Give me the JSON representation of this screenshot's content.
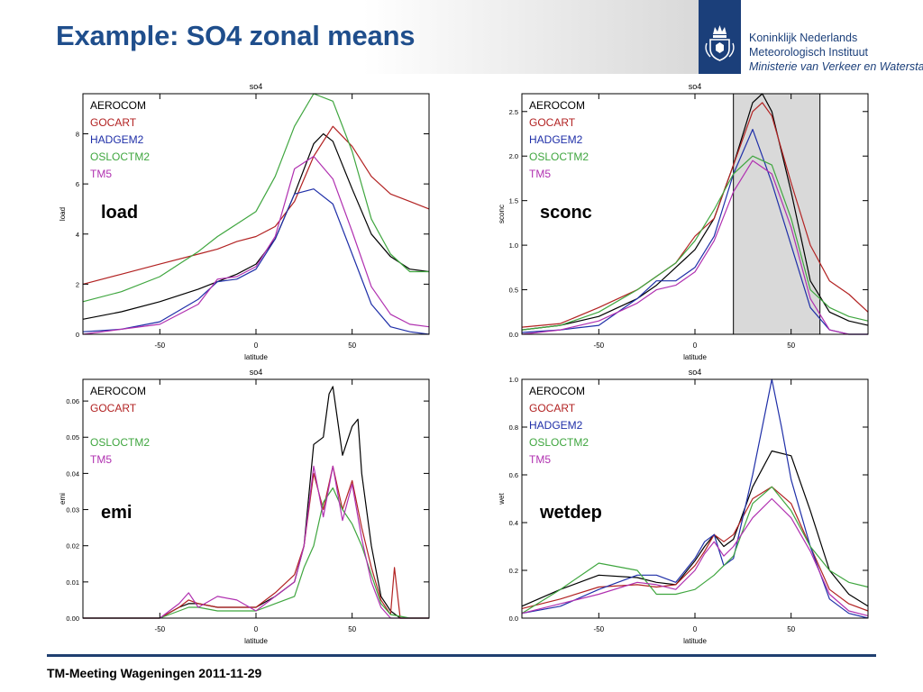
{
  "header": {
    "title": "Example: SO4 zonal means",
    "logo": {
      "line1": "Koninklijk Nederlands",
      "line2": "Meteorologisch Instituut",
      "line3": "Ministerie van Verkeer en Waterstaat"
    }
  },
  "footer": {
    "text": "TM-Meeting Wageningen 2011-11-29"
  },
  "colors": {
    "title": "#1f4e8c",
    "AEROCOM": "#000000",
    "GOCART": "#b22222",
    "HADGEM2": "#1f2fa8",
    "OSLOCTM2": "#3fa63f",
    "TM5": "#b030b0",
    "shade": "#d9d9d9"
  },
  "chart_data": [
    {
      "type": "line",
      "title": "so4",
      "xlabel": "latitude",
      "ylabel": "load",
      "panel_label": "load",
      "xlim": [
        -90,
        90
      ],
      "ylim": [
        0,
        9.6
      ],
      "xticks": [
        -50,
        0,
        50
      ],
      "yticks": [
        0,
        2,
        4,
        6,
        8
      ],
      "legend": [
        "AEROCOM",
        "GOCART",
        "HADGEM2",
        "OSLOCTM2",
        "TM5"
      ],
      "legend_position": "top-left",
      "series": [
        {
          "name": "AEROCOM",
          "x": [
            -90,
            -70,
            -50,
            -30,
            -20,
            -10,
            0,
            10,
            20,
            30,
            35,
            40,
            50,
            60,
            70,
            80,
            90
          ],
          "y": [
            0.6,
            0.9,
            1.3,
            1.8,
            2.1,
            2.4,
            2.8,
            3.8,
            5.6,
            7.6,
            8.0,
            7.7,
            5.8,
            4.0,
            3.1,
            2.6,
            2.5
          ]
        },
        {
          "name": "GOCART",
          "x": [
            -90,
            -70,
            -50,
            -30,
            -20,
            -10,
            0,
            10,
            20,
            30,
            40,
            50,
            60,
            70,
            80,
            90
          ],
          "y": [
            2.0,
            2.4,
            2.8,
            3.2,
            3.4,
            3.7,
            3.9,
            4.3,
            5.3,
            7.1,
            8.3,
            7.5,
            6.3,
            5.6,
            5.3,
            5.0
          ]
        },
        {
          "name": "HADGEM2",
          "x": [
            -90,
            -70,
            -50,
            -30,
            -20,
            -10,
            0,
            10,
            20,
            30,
            40,
            50,
            60,
            70,
            80,
            90
          ],
          "y": [
            0.1,
            0.2,
            0.5,
            1.4,
            2.1,
            2.2,
            2.6,
            3.8,
            5.6,
            5.8,
            5.2,
            3.2,
            1.2,
            0.3,
            0.1,
            0.0
          ]
        },
        {
          "name": "OSLOCTM2",
          "x": [
            -90,
            -70,
            -50,
            -30,
            -20,
            -10,
            0,
            10,
            20,
            30,
            40,
            50,
            60,
            70,
            80,
            90
          ],
          "y": [
            1.3,
            1.7,
            2.3,
            3.3,
            3.9,
            4.4,
            4.9,
            6.3,
            8.3,
            9.6,
            9.3,
            7.3,
            4.6,
            3.2,
            2.5,
            2.5
          ]
        },
        {
          "name": "TM5",
          "x": [
            -90,
            -70,
            -50,
            -30,
            -20,
            -10,
            0,
            10,
            20,
            30,
            40,
            50,
            60,
            70,
            80,
            90
          ],
          "y": [
            0.0,
            0.2,
            0.4,
            1.2,
            2.2,
            2.3,
            2.7,
            3.9,
            6.6,
            7.1,
            6.2,
            4.1,
            1.9,
            0.8,
            0.4,
            0.3
          ]
        }
      ],
      "grid": false
    },
    {
      "type": "line",
      "title": "so4",
      "xlabel": "latitude",
      "ylabel": "sconc",
      "panel_label": "sconc",
      "xlim": [
        -90,
        90
      ],
      "ylim": [
        0,
        2.7
      ],
      "xticks": [
        -50,
        0,
        50
      ],
      "yticks": [
        0.0,
        0.5,
        1.0,
        1.5,
        2.0,
        2.5
      ],
      "ytick_labels": [
        "0.0",
        "0.5",
        "1.0",
        "1.5",
        "2.0",
        "2.5"
      ],
      "shaded_x_range": [
        20,
        65
      ],
      "legend": [
        "AEROCOM",
        "GOCART",
        "HADGEM2",
        "OSLOCTM2",
        "TM5"
      ],
      "legend_position": "top-left",
      "series": [
        {
          "name": "AEROCOM",
          "x": [
            -90,
            -70,
            -50,
            -30,
            -20,
            -10,
            0,
            10,
            20,
            30,
            35,
            40,
            50,
            60,
            70,
            80,
            90
          ],
          "y": [
            0.05,
            0.1,
            0.2,
            0.4,
            0.55,
            0.75,
            0.95,
            1.3,
            1.9,
            2.6,
            2.7,
            2.5,
            1.6,
            0.6,
            0.25,
            0.15,
            0.1
          ]
        },
        {
          "name": "GOCART",
          "x": [
            -90,
            -70,
            -50,
            -30,
            -20,
            -10,
            0,
            10,
            20,
            30,
            35,
            40,
            50,
            60,
            70,
            80,
            90
          ],
          "y": [
            0.08,
            0.12,
            0.3,
            0.5,
            0.65,
            0.8,
            1.1,
            1.3,
            1.9,
            2.5,
            2.6,
            2.45,
            1.7,
            1.0,
            0.6,
            0.45,
            0.25
          ]
        },
        {
          "name": "HADGEM2",
          "x": [
            -90,
            -70,
            -50,
            -30,
            -20,
            -10,
            0,
            10,
            20,
            30,
            35,
            40,
            50,
            60,
            70,
            80,
            90
          ],
          "y": [
            0.02,
            0.05,
            0.1,
            0.4,
            0.6,
            0.6,
            0.75,
            1.1,
            1.8,
            2.3,
            2.0,
            1.7,
            1.0,
            0.3,
            0.05,
            0.0,
            0.0
          ]
        },
        {
          "name": "OSLOCTM2",
          "x": [
            -90,
            -70,
            -50,
            -30,
            -20,
            -10,
            0,
            10,
            20,
            30,
            40,
            50,
            60,
            70,
            80,
            90
          ],
          "y": [
            0.05,
            0.1,
            0.25,
            0.5,
            0.65,
            0.8,
            1.05,
            1.4,
            1.8,
            2.0,
            1.9,
            1.3,
            0.5,
            0.3,
            0.2,
            0.15
          ]
        },
        {
          "name": "TM5",
          "x": [
            -90,
            -70,
            -50,
            -30,
            -20,
            -10,
            0,
            10,
            20,
            30,
            40,
            50,
            60,
            70,
            80,
            90
          ],
          "y": [
            0.0,
            0.05,
            0.15,
            0.35,
            0.5,
            0.55,
            0.7,
            1.05,
            1.6,
            1.95,
            1.8,
            1.2,
            0.4,
            0.05,
            0.0,
            0.0
          ]
        }
      ],
      "grid": false
    },
    {
      "type": "line",
      "title": "so4",
      "xlabel": "latitude",
      "ylabel": "emi",
      "panel_label": "emi",
      "xlim": [
        -90,
        90
      ],
      "ylim": [
        0,
        0.066
      ],
      "xticks": [
        -50,
        0,
        50
      ],
      "yticks": [
        0.0,
        0.01,
        0.02,
        0.03,
        0.04,
        0.05,
        0.06
      ],
      "ytick_labels": [
        "0.00",
        "0.01",
        "0.02",
        "0.03",
        "0.04",
        "0.05",
        "0.06"
      ],
      "legend": [
        "AEROCOM",
        "GOCART",
        "",
        "OSLOCTM2",
        "TM5"
      ],
      "legend_position": "top-left",
      "series": [
        {
          "name": "AEROCOM",
          "x": [
            -90,
            -70,
            -50,
            -40,
            -35,
            -30,
            -20,
            -10,
            0,
            10,
            20,
            25,
            30,
            35,
            38,
            40,
            45,
            50,
            53,
            55,
            60,
            65,
            70,
            75,
            80,
            90
          ],
          "y": [
            0.0,
            0.0,
            0.0,
            0.003,
            0.004,
            0.004,
            0.003,
            0.003,
            0.003,
            0.006,
            0.01,
            0.02,
            0.048,
            0.05,
            0.062,
            0.064,
            0.045,
            0.053,
            0.055,
            0.04,
            0.02,
            0.006,
            0.002,
            0.0,
            0.0,
            0.0
          ]
        },
        {
          "name": "GOCART",
          "x": [
            -90,
            -70,
            -50,
            -40,
            -35,
            -30,
            -20,
            -10,
            0,
            10,
            20,
            25,
            30,
            35,
            40,
            45,
            50,
            55,
            60,
            65,
            70,
            72,
            75,
            80,
            90
          ],
          "y": [
            0.0,
            0.0,
            0.0,
            0.003,
            0.005,
            0.004,
            0.003,
            0.003,
            0.003,
            0.007,
            0.012,
            0.02,
            0.04,
            0.03,
            0.042,
            0.03,
            0.038,
            0.025,
            0.014,
            0.005,
            0.001,
            0.014,
            0.0,
            0.0,
            0.0
          ]
        },
        {
          "name": "OSLOCTM2",
          "x": [
            -90,
            -70,
            -50,
            -40,
            -35,
            -30,
            -20,
            -10,
            0,
            10,
            20,
            25,
            30,
            35,
            40,
            45,
            50,
            55,
            60,
            65,
            70,
            80,
            90
          ],
          "y": [
            0.0,
            0.0,
            0.0,
            0.002,
            0.003,
            0.003,
            0.002,
            0.002,
            0.002,
            0.004,
            0.006,
            0.014,
            0.02,
            0.032,
            0.036,
            0.03,
            0.026,
            0.02,
            0.012,
            0.004,
            0.001,
            0.0,
            0.0
          ]
        },
        {
          "name": "TM5",
          "x": [
            -90,
            -70,
            -50,
            -40,
            -35,
            -30,
            -20,
            -10,
            0,
            10,
            20,
            25,
            30,
            35,
            40,
            45,
            50,
            55,
            60,
            65,
            70,
            80,
            90
          ],
          "y": [
            0.0,
            0.0,
            0.0,
            0.004,
            0.007,
            0.003,
            0.006,
            0.005,
            0.002,
            0.006,
            0.01,
            0.02,
            0.042,
            0.028,
            0.042,
            0.027,
            0.037,
            0.022,
            0.01,
            0.003,
            0.0,
            0.0,
            0.0
          ]
        }
      ],
      "grid": false
    },
    {
      "type": "line",
      "title": "so4",
      "xlabel": "latitude",
      "ylabel": "wet",
      "panel_label": "wetdep",
      "xlim": [
        -90,
        90
      ],
      "ylim": [
        0,
        1.0
      ],
      "xticks": [
        -50,
        0,
        50
      ],
      "yticks": [
        0.0,
        0.2,
        0.4,
        0.6,
        0.8,
        1.0
      ],
      "ytick_labels": [
        "0.0",
        "0.2",
        "0.4",
        "0.6",
        "0.8",
        "1.0"
      ],
      "legend": [
        "AEROCOM",
        "GOCART",
        "HADGEM2",
        "OSLOCTM2",
        "TM5"
      ],
      "legend_position": "top-left",
      "series": [
        {
          "name": "AEROCOM",
          "x": [
            -90,
            -70,
            -50,
            -30,
            -20,
            -10,
            0,
            5,
            10,
            15,
            20,
            30,
            40,
            50,
            60,
            70,
            80,
            90
          ],
          "y": [
            0.05,
            0.12,
            0.18,
            0.17,
            0.15,
            0.14,
            0.24,
            0.3,
            0.35,
            0.3,
            0.33,
            0.55,
            0.7,
            0.68,
            0.45,
            0.2,
            0.1,
            0.05
          ]
        },
        {
          "name": "GOCART",
          "x": [
            -90,
            -70,
            -50,
            -30,
            -20,
            -10,
            0,
            5,
            10,
            15,
            20,
            30,
            40,
            50,
            60,
            70,
            80,
            90
          ],
          "y": [
            0.04,
            0.08,
            0.13,
            0.14,
            0.13,
            0.14,
            0.22,
            0.28,
            0.35,
            0.32,
            0.35,
            0.5,
            0.55,
            0.48,
            0.3,
            0.12,
            0.06,
            0.03
          ]
        },
        {
          "name": "HADGEM2",
          "x": [
            -90,
            -70,
            -50,
            -30,
            -20,
            -10,
            0,
            5,
            10,
            15,
            20,
            30,
            35,
            40,
            45,
            50,
            60,
            70,
            80,
            90
          ],
          "y": [
            0.02,
            0.05,
            0.12,
            0.18,
            0.18,
            0.15,
            0.25,
            0.32,
            0.35,
            0.22,
            0.25,
            0.6,
            0.8,
            1.0,
            0.8,
            0.58,
            0.3,
            0.08,
            0.02,
            0.0
          ]
        },
        {
          "name": "OSLOCTM2",
          "x": [
            -90,
            -70,
            -50,
            -30,
            -20,
            -10,
            0,
            10,
            20,
            30,
            40,
            50,
            60,
            70,
            80,
            90
          ],
          "y": [
            0.02,
            0.12,
            0.23,
            0.2,
            0.1,
            0.1,
            0.12,
            0.18,
            0.26,
            0.48,
            0.55,
            0.45,
            0.3,
            0.2,
            0.15,
            0.13
          ]
        },
        {
          "name": "TM5",
          "x": [
            -90,
            -70,
            -50,
            -30,
            -20,
            -10,
            0,
            5,
            10,
            15,
            20,
            30,
            40,
            50,
            60,
            70,
            80,
            90
          ],
          "y": [
            0.02,
            0.06,
            0.1,
            0.15,
            0.14,
            0.12,
            0.2,
            0.27,
            0.32,
            0.26,
            0.3,
            0.42,
            0.5,
            0.42,
            0.28,
            0.1,
            0.03,
            0.01
          ]
        }
      ],
      "grid": false
    }
  ]
}
